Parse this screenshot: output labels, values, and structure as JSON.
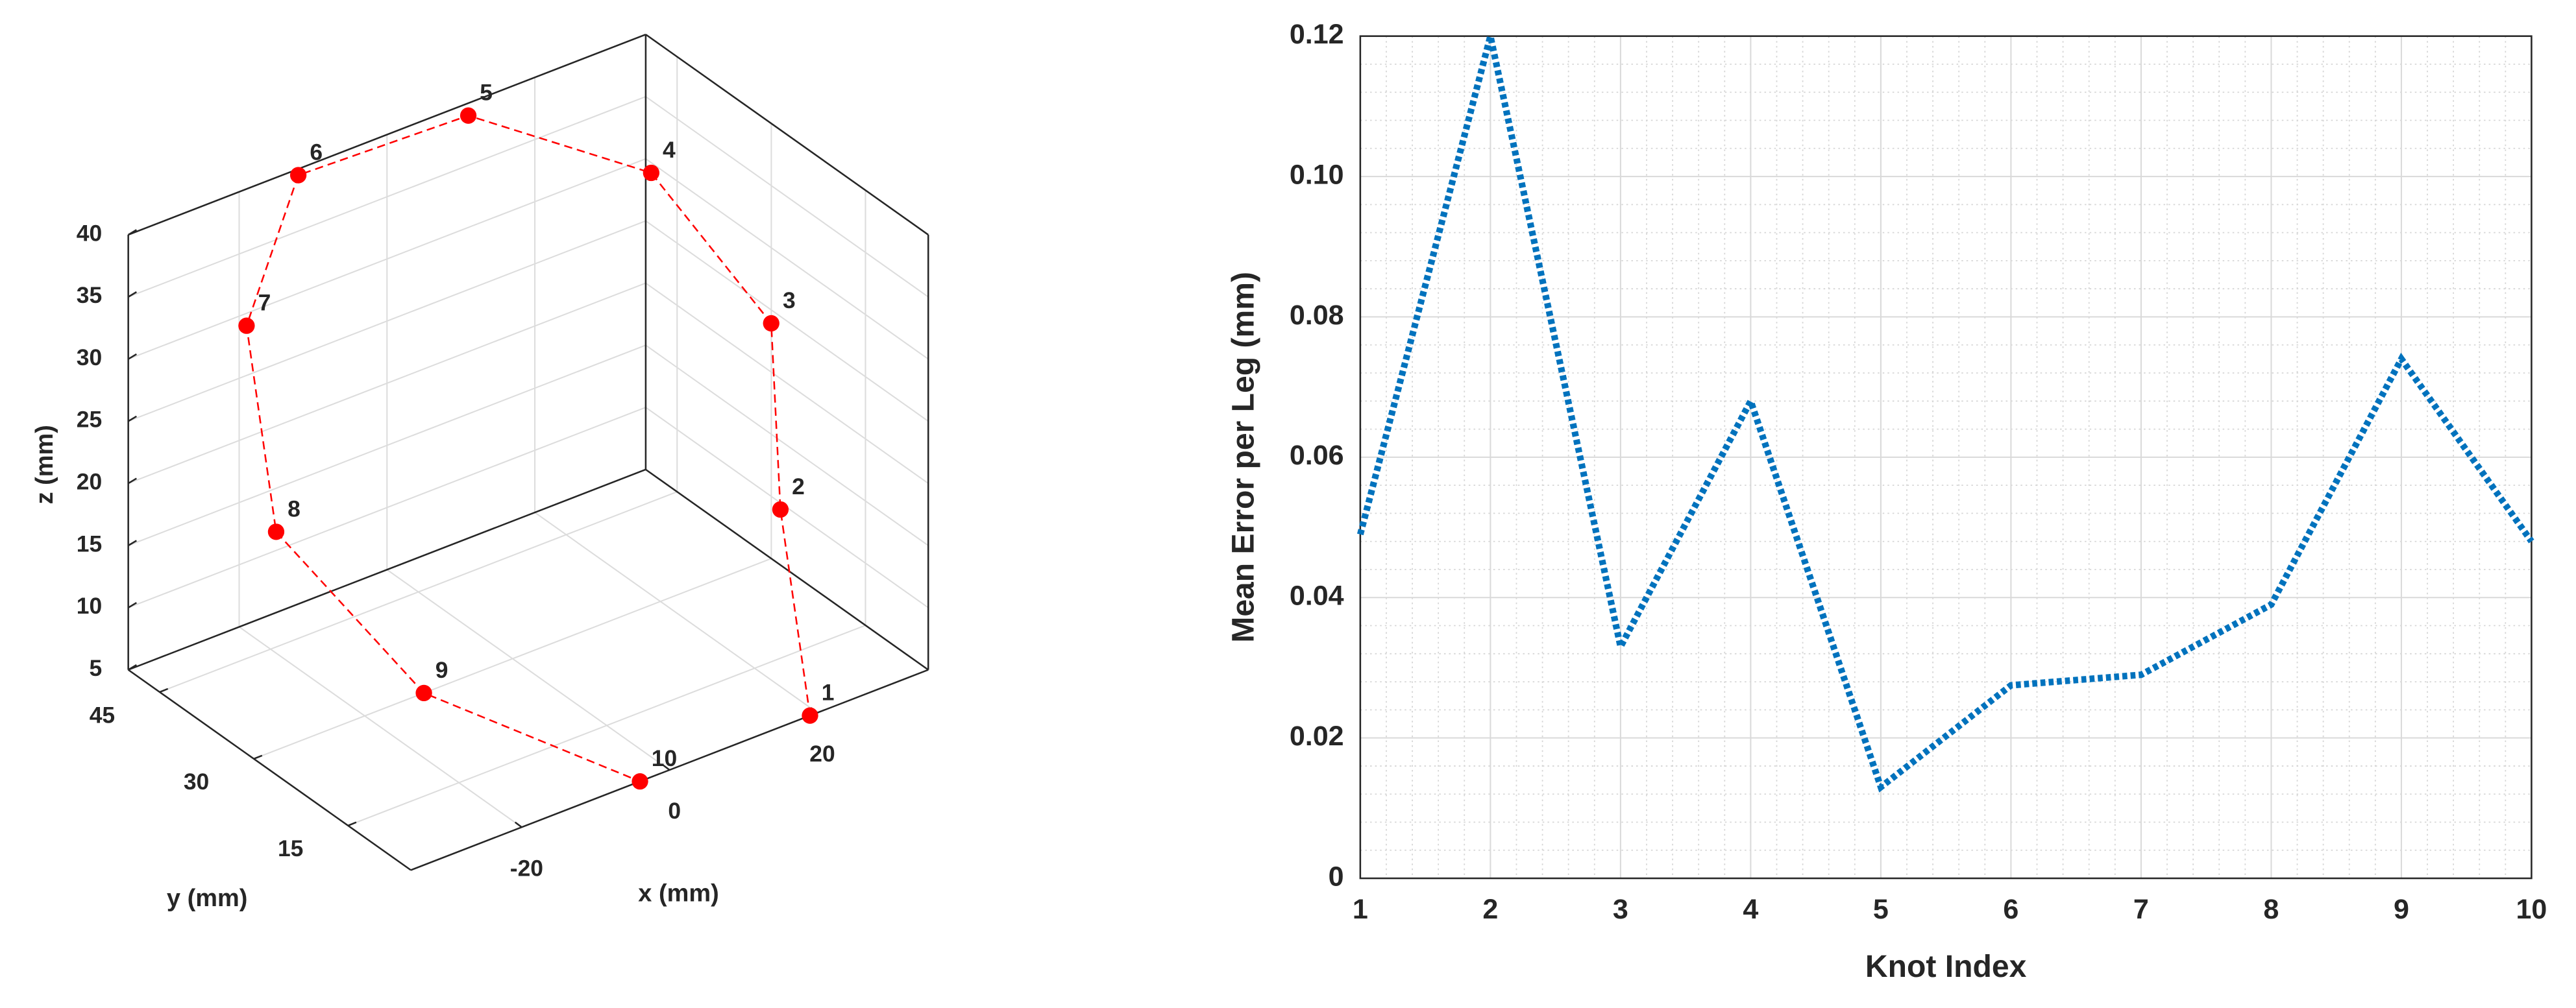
{
  "chart_data": [
    {
      "type": "scatter3d",
      "labels": [
        "1",
        "2",
        "3",
        "4",
        "5",
        "6",
        "7",
        "8",
        "9",
        "10"
      ],
      "x": [
        19,
        15,
        18,
        23,
        11,
        -12,
        -19,
        -15,
        -12,
        -4
      ],
      "y": [
        5,
        5,
        10,
        35,
        50,
        50,
        50,
        50,
        30,
        5
      ],
      "z": [
        5,
        22.5,
        35,
        37,
        39,
        39.5,
        29,
        11.5,
        5,
        5
      ],
      "xlabel": "x (mm)",
      "ylabel": "y (mm)",
      "zlabel": "z (mm)",
      "xlim": [
        -35,
        35
      ],
      "ylim": [
        5,
        50
      ],
      "zlim": [
        5,
        40
      ],
      "xticks": [
        -20,
        0,
        20
      ],
      "yticks": [
        15,
        30,
        45
      ],
      "zticks": [
        5,
        10,
        15,
        20,
        25,
        30,
        35,
        40
      ],
      "color": "#ff0000",
      "grid": true
    },
    {
      "type": "line",
      "xlabel": "Knot Index",
      "ylabel": "Mean Error per Leg (mm)",
      "x": [
        1,
        2,
        3,
        4,
        5,
        6,
        7,
        8,
        9,
        10
      ],
      "values": [
        0.049,
        0.12,
        0.033,
        0.068,
        0.013,
        0.0275,
        0.029,
        0.039,
        0.074,
        0.048
      ],
      "color": "#0072bd",
      "xlim": [
        1,
        10
      ],
      "ylim": [
        0,
        0.12
      ],
      "xticks": [
        1,
        2,
        3,
        4,
        5,
        6,
        7,
        8,
        9,
        10
      ],
      "yticks": [
        0,
        0.02,
        0.04,
        0.06,
        0.08,
        {
          "value": 0.1,
          "label": "0.10"
        },
        0.12
      ],
      "grid": true,
      "minor_grid": true
    }
  ]
}
